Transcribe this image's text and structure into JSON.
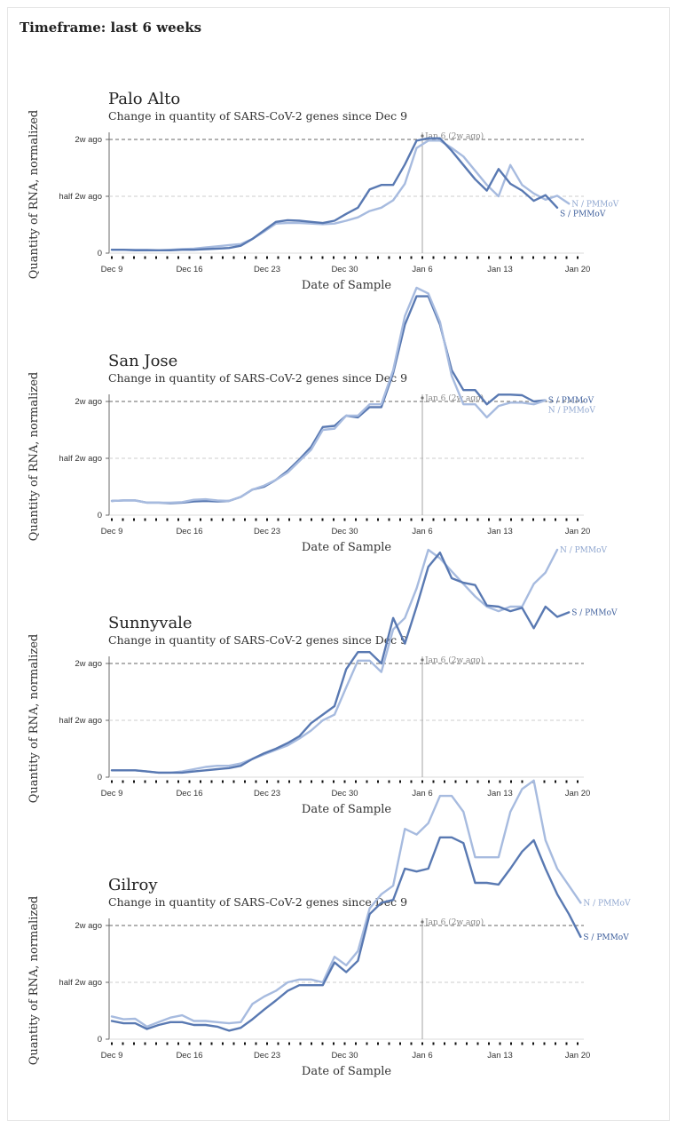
{
  "page": {
    "timeframe": "Timeframe: last 6 weeks"
  },
  "colors": {
    "n_series": "#a7bbdf",
    "s_series": "#5979b2",
    "ref_line": "#666666",
    "grid": "#cccccc"
  },
  "chart_data": [
    {
      "type": "line",
      "title": "Palo Alto",
      "subtitle": "Change in quantity of SARS-CoV-2 genes since Dec 9",
      "xlabel": "Date of Sample",
      "ylabel": "Quantity of RNA, normalized",
      "x_ticks": [
        "Dec 9",
        "Dec 16",
        "Dec 23",
        "Dec 30",
        "Jan 6",
        "Jan 13",
        "Jan 20"
      ],
      "y_ticks": [
        "0",
        "half 2w ago",
        "2w ago"
      ],
      "annotation": "Jan 6 (2w ago)",
      "series": [
        {
          "name": "N / PMMoV",
          "values": [
            0.06,
            0.06,
            0.06,
            0.06,
            0.05,
            0.06,
            0.07,
            0.08,
            0.1,
            0.12,
            0.14,
            0.16,
            0.25,
            0.38,
            0.52,
            0.53,
            0.53,
            0.52,
            0.51,
            0.52,
            0.57,
            0.63,
            0.74,
            0.8,
            0.93,
            1.22,
            1.85,
            1.98,
            1.98,
            1.85,
            1.7,
            1.45,
            1.2,
            1.0,
            1.55,
            1.2,
            1.05,
            0.94,
            1.01,
            0.87
          ]
        },
        {
          "name": "S / PMMoV",
          "values": [
            0.06,
            0.06,
            0.05,
            0.05,
            0.05,
            0.05,
            0.06,
            0.06,
            0.07,
            0.08,
            0.09,
            0.13,
            0.25,
            0.4,
            0.55,
            0.58,
            0.57,
            0.55,
            0.53,
            0.57,
            0.69,
            0.8,
            1.12,
            1.2,
            1.2,
            1.56,
            1.98,
            2.02,
            2.02,
            1.8,
            1.55,
            1.3,
            1.1,
            1.48,
            1.22,
            1.1,
            0.92,
            1.02,
            0.8
          ]
        }
      ]
    },
    {
      "type": "line",
      "title": "San Jose",
      "subtitle": "Change in quantity of SARS-CoV-2 genes since Dec 9",
      "xlabel": "Date of Sample",
      "ylabel": "Quantity of RNA, normalized",
      "x_ticks": [
        "Dec 9",
        "Dec 16",
        "Dec 23",
        "Dec 30",
        "Jan 6",
        "Jan 13",
        "Jan 20"
      ],
      "y_ticks": [
        "0",
        "half 2w ago",
        "2w ago"
      ],
      "annotation": "Jan 6 (2w ago)",
      "series": [
        {
          "name": "S / PMMoV",
          "values": [
            0.25,
            0.26,
            0.26,
            0.22,
            0.22,
            0.21,
            0.22,
            0.24,
            0.25,
            0.24,
            0.25,
            0.32,
            0.45,
            0.5,
            0.62,
            0.78,
            0.98,
            1.2,
            1.55,
            1.57,
            1.75,
            1.72,
            1.9,
            1.9,
            2.5,
            3.35,
            3.85,
            3.85,
            3.35,
            2.55,
            2.2,
            2.2,
            1.95,
            2.12,
            2.12,
            2.11,
            2.0,
            2.02
          ]
        },
        {
          "name": "N / PMMoV",
          "values": [
            0.25,
            0.26,
            0.26,
            0.22,
            0.22,
            0.22,
            0.23,
            0.27,
            0.28,
            0.26,
            0.25,
            0.32,
            0.45,
            0.52,
            0.62,
            0.75,
            0.95,
            1.15,
            1.5,
            1.52,
            1.75,
            1.75,
            1.95,
            1.95,
            2.55,
            3.5,
            4.0,
            3.9,
            3.4,
            2.45,
            1.95,
            1.95,
            1.72,
            1.92,
            1.98,
            1.98,
            1.95,
            2.02
          ]
        }
      ]
    },
    {
      "type": "line",
      "title": "Sunnyvale",
      "subtitle": "Change in quantity of SARS-CoV-2 genes since Dec 9",
      "xlabel": "Date of Sample",
      "ylabel": "Quantity of RNA, normalized",
      "x_ticks": [
        "Dec 9",
        "Dec 16",
        "Dec 23",
        "Dec 30",
        "Jan 6",
        "Jan 13",
        "Jan 20"
      ],
      "y_ticks": [
        "0",
        "half 2w ago",
        "2w ago"
      ],
      "annotation": "Jan 6 (2w ago)",
      "series": [
        {
          "name": "N / PMMoV",
          "values": [
            0.12,
            0.12,
            0.12,
            0.1,
            0.08,
            0.08,
            0.1,
            0.14,
            0.18,
            0.2,
            0.2,
            0.24,
            0.32,
            0.4,
            0.48,
            0.56,
            0.68,
            0.82,
            1.0,
            1.1,
            1.58,
            2.05,
            2.05,
            1.85,
            2.6,
            2.8,
            3.32,
            4.0,
            3.85,
            3.62,
            3.4,
            3.18,
            3.0,
            2.92,
            3.0,
            3.0,
            3.4,
            3.6,
            4.0
          ]
        },
        {
          "name": "S / PMMoV",
          "values": [
            0.12,
            0.12,
            0.12,
            0.1,
            0.08,
            0.08,
            0.08,
            0.1,
            0.12,
            0.14,
            0.16,
            0.2,
            0.32,
            0.42,
            0.5,
            0.6,
            0.72,
            0.95,
            1.1,
            1.25,
            1.9,
            2.2,
            2.2,
            2.0,
            2.8,
            2.35,
            3.0,
            3.7,
            3.95,
            3.5,
            3.42,
            3.38,
            3.02,
            3.0,
            2.92,
            2.98,
            2.62,
            3.0,
            2.82,
            2.9
          ]
        }
      ]
    },
    {
      "type": "line",
      "title": "Gilroy",
      "subtitle": "Change in quantity of SARS-CoV-2 genes since Dec 9",
      "xlabel": "Date of Sample",
      "ylabel": "Quantity of RNA, normalized",
      "x_ticks": [
        "Dec 9",
        "Dec 16",
        "Dec 23",
        "Dec 30",
        "Jan 6",
        "Jan 13",
        "Jan 20"
      ],
      "y_ticks": [
        "0",
        "half 2w ago",
        "2w ago"
      ],
      "annotation": "Jan 6 (2w ago)",
      "series": [
        {
          "name": "N / PMMoV",
          "values": [
            0.4,
            0.35,
            0.36,
            0.22,
            0.3,
            0.38,
            0.42,
            0.32,
            0.32,
            0.3,
            0.28,
            0.3,
            0.62,
            0.75,
            0.85,
            1.0,
            1.05,
            1.05,
            1.0,
            1.45,
            1.3,
            1.55,
            2.3,
            2.55,
            2.7,
            3.7,
            3.6,
            3.8,
            4.28,
            4.28,
            4.0,
            3.2,
            3.2,
            3.2,
            4.0,
            4.4,
            4.55,
            3.5,
            3.0,
            2.7,
            2.4
          ]
        },
        {
          "name": "S / PMMoV",
          "values": [
            0.32,
            0.28,
            0.28,
            0.18,
            0.25,
            0.3,
            0.3,
            0.25,
            0.25,
            0.22,
            0.15,
            0.2,
            0.35,
            0.52,
            0.68,
            0.85,
            0.95,
            0.95,
            0.95,
            1.35,
            1.18,
            1.38,
            2.2,
            2.4,
            2.45,
            3.0,
            2.95,
            3.0,
            3.55,
            3.55,
            3.45,
            2.75,
            2.75,
            2.72,
            3.0,
            3.3,
            3.5,
            3.0,
            2.55,
            2.2,
            1.8
          ]
        }
      ]
    }
  ]
}
